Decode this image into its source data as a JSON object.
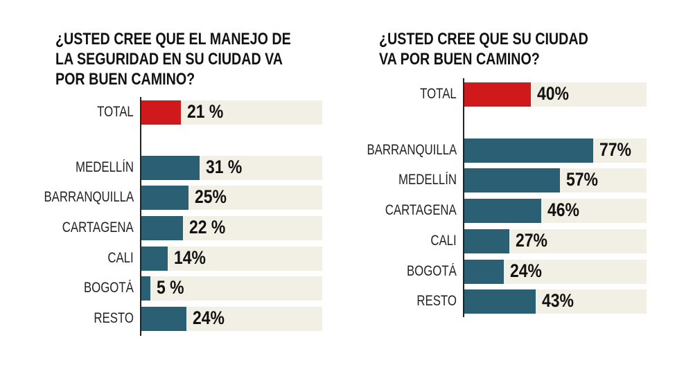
{
  "chart_data": [
    {
      "type": "bar",
      "orientation": "horizontal",
      "title": [
        "¿USTED CREE QUE EL MANEJO DE",
        "LA SEGURIDAD EN SU CIUDAD VA",
        "POR BUEN CAMINO?"
      ],
      "categories": [
        "TOTAL",
        "MEDELLÍN",
        "BARRANQUILLA",
        "CARTAGENA",
        "CALI",
        "BOGOTÁ",
        "RESTO"
      ],
      "values": [
        21,
        31,
        25,
        22,
        14,
        5,
        24
      ],
      "labels": [
        "21 %",
        "31 %",
        "25%",
        "22 %",
        "14%",
        "5 %",
        "24%"
      ],
      "xlim": [
        0,
        100
      ]
    },
    {
      "type": "bar",
      "orientation": "horizontal",
      "title": [
        "¿USTED CREE QUE SU CIUDAD",
        "VA POR BUEN CAMINO?"
      ],
      "categories": [
        "TOTAL",
        "BARRANQUILLA",
        "MEDELLÍN",
        "CARTAGENA",
        "CALI",
        "BOGOTÁ",
        "RESTO"
      ],
      "values": [
        40,
        77,
        57,
        46,
        27,
        24,
        43
      ],
      "labels": [
        "40%",
        "77%",
        "57%",
        "46%",
        "27%",
        "24%",
        "43%"
      ],
      "xlim": [
        0,
        100
      ]
    }
  ],
  "colors": {
    "total": "#d0191b",
    "city": "#2b5f73",
    "background": "#f2efe4"
  }
}
